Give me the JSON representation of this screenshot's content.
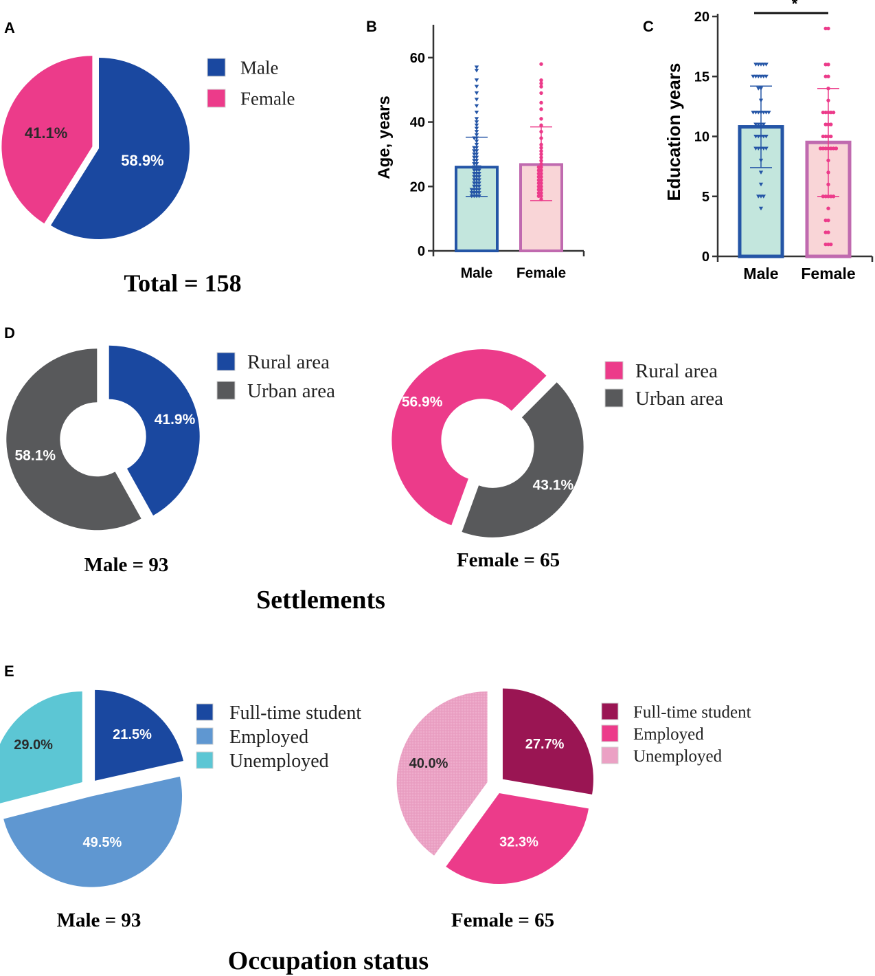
{
  "panel_labels": {
    "a": "A",
    "b": "B",
    "c": "C",
    "d": "D",
    "e": "E"
  },
  "colors": {
    "male_blue": "#1a48a0",
    "female_pink": "#ec3b8a",
    "urban_gray": "#58595b",
    "employed_blue": "#5f97d1",
    "unemployed_cyan": "#5cc6d4",
    "student_maroon": "#9a1553",
    "unemployed_pink": "#eba1c4",
    "bar_fill_male": "#c3e6dd",
    "bar_fill_female": "#f9d5d7",
    "bar_edge_male": "#2455a6",
    "bar_edge_female": "#c06aaf"
  },
  "chart_data": [
    {
      "id": "A",
      "type": "pie",
      "labels": [
        "Male",
        "Female"
      ],
      "values": [
        58.9,
        41.1
      ],
      "value_labels": [
        "58.9%",
        "41.1%"
      ],
      "caption": "Total = 158",
      "legend_position": "right"
    },
    {
      "id": "B",
      "type": "bar",
      "categories": [
        "Male",
        "Female"
      ],
      "values": [
        26,
        26.8
      ],
      "error_upper": [
        35.3,
        38.5
      ],
      "error_lower": [
        16.9,
        15.6
      ],
      "ylabel": "Age, years",
      "ylim": [
        0,
        70
      ],
      "yticks": [
        "0",
        "20",
        "40",
        "60"
      ],
      "points": {
        "Male": [
          17,
          17,
          17,
          17,
          18,
          18,
          18,
          18,
          19,
          19,
          19,
          19,
          20,
          20,
          20,
          21,
          21,
          21,
          22,
          22,
          22,
          23,
          23,
          23,
          24,
          24,
          24,
          25,
          25,
          25,
          26,
          26,
          26,
          27,
          27,
          28,
          28,
          29,
          29,
          30,
          30,
          31,
          31,
          32,
          32,
          33,
          34,
          35,
          35,
          36,
          37,
          38,
          39,
          40,
          41,
          43,
          45,
          47,
          49,
          51,
          53,
          56,
          57
        ],
        "Female": [
          16,
          17,
          17,
          18,
          18,
          19,
          19,
          20,
          20,
          21,
          21,
          22,
          22,
          23,
          23,
          24,
          24,
          25,
          25,
          26,
          26,
          27,
          28,
          29,
          30,
          31,
          32,
          33,
          35,
          37,
          39,
          41,
          44,
          46,
          49,
          51,
          52,
          53,
          58
        ]
      }
    },
    {
      "id": "C",
      "type": "bar",
      "categories": [
        "Male",
        "Female"
      ],
      "values": [
        10.8,
        9.5
      ],
      "error_upper": [
        14.2,
        14.0
      ],
      "error_lower": [
        7.4,
        5.0
      ],
      "ylabel": "Education years",
      "ylim": [
        0,
        20
      ],
      "yticks": [
        "0",
        "5",
        "10",
        "15",
        "20"
      ],
      "significance": "*",
      "points": {
        "Male": [
          4,
          5,
          5,
          5,
          6,
          7,
          8,
          9,
          9,
          9,
          9,
          9,
          10,
          10,
          10,
          10,
          10,
          11,
          11,
          11,
          11,
          12,
          12,
          12,
          12,
          12,
          12,
          12,
          13,
          14,
          14,
          15,
          15,
          15,
          15,
          15,
          15,
          16,
          16,
          16,
          16,
          16
        ],
        "Female": [
          1,
          1,
          1,
          2,
          2,
          3,
          3,
          4,
          5,
          5,
          5,
          5,
          5,
          6,
          7,
          8,
          9,
          9,
          9,
          9,
          9,
          9,
          9,
          10,
          10,
          10,
          10,
          11,
          11,
          11,
          12,
          12,
          12,
          12,
          12,
          13,
          14,
          15,
          15,
          16,
          16,
          19,
          19
        ]
      }
    },
    {
      "id": "D-male",
      "type": "donut",
      "labels": [
        "Rural area",
        "Urban area"
      ],
      "values": [
        41.9,
        58.1
      ],
      "value_labels": [
        "41.9%",
        "58.1%"
      ],
      "caption": "Male = 93",
      "legend_position": "right"
    },
    {
      "id": "D-female",
      "type": "donut",
      "labels": [
        "Rural area",
        "Urban area"
      ],
      "values": [
        56.9,
        43.1
      ],
      "value_labels": [
        "56.9%",
        "43.1%"
      ],
      "caption": "Female = 65",
      "legend_position": "right"
    },
    {
      "id": "E-male",
      "type": "pie",
      "labels": [
        "Full-time student",
        "Employed",
        "Unemployed"
      ],
      "values": [
        21.5,
        49.5,
        29.0
      ],
      "value_labels": [
        "21.5%",
        "49.5%",
        "29.0%"
      ],
      "caption": "Male = 93",
      "legend_position": "right"
    },
    {
      "id": "E-female",
      "type": "pie",
      "labels": [
        "Full-time student",
        "Employed",
        "Unemployed"
      ],
      "values": [
        27.7,
        32.3,
        40.0
      ],
      "value_labels": [
        "27.7%",
        "32.3%",
        "40.0%"
      ],
      "caption": "Female = 65",
      "legend_position": "right"
    }
  ],
  "section_titles": {
    "d": "Settlements",
    "e": "Occupation status"
  }
}
